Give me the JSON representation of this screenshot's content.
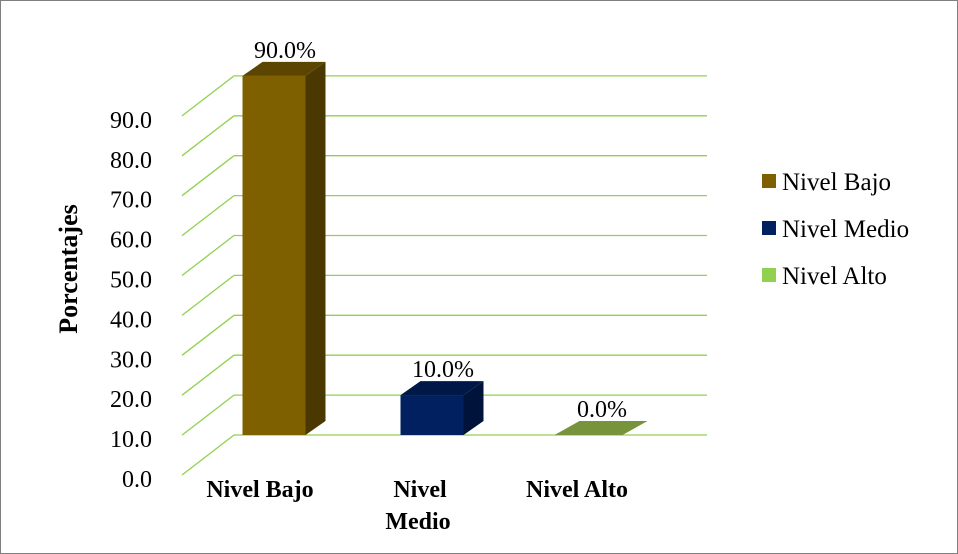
{
  "chart_data": {
    "type": "bar",
    "style": "3d-column",
    "categories": [
      "Nivel Bajo",
      "Nivel Medio",
      "Nivel Alto"
    ],
    "category_lines": [
      [
        "Nivel Bajo"
      ],
      [
        "Nivel",
        "Medio"
      ],
      [
        "Nivel Alto"
      ]
    ],
    "values": [
      90.0,
      10.0,
      0.0
    ],
    "data_labels": [
      "90.0%",
      "10.0%",
      "0.0%"
    ],
    "ylabel": "Porcentajes",
    "xlabel": "",
    "title": "",
    "ylim": [
      0,
      90
    ],
    "yticks": [
      "0.0",
      "10.0",
      "20.0",
      "30.0",
      "40.0",
      "50.0",
      "60.0",
      "70.0",
      "80.0",
      "90.0"
    ],
    "grid": true,
    "grid_color": "#92d050",
    "legend": {
      "position": "right",
      "entries": [
        "Nivel Bajo",
        "Nivel Medio",
        "Nivel Alto"
      ]
    },
    "colors": {
      "Nivel Bajo": {
        "front": "#7f6000",
        "top": "#5c4500",
        "side": "#4a3800"
      },
      "Nivel Medio": {
        "front": "#002060",
        "top": "#001848",
        "side": "#00133a"
      },
      "Nivel Alto": {
        "front": "#92d050",
        "top": "#77933c",
        "side": "#5f7a2e"
      }
    }
  }
}
